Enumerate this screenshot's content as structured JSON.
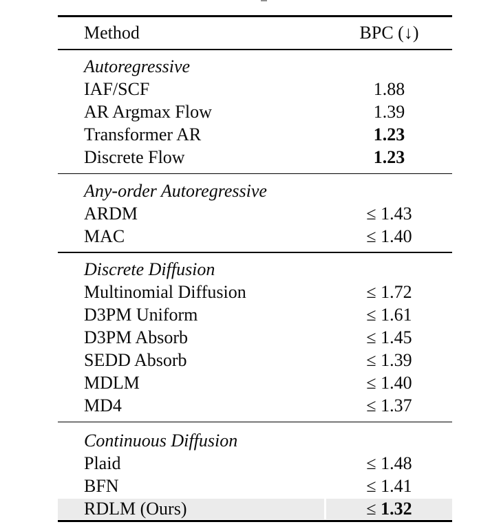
{
  "page": {
    "background": "#ffffff",
    "highlight_color": "#ebebeb"
  },
  "table": {
    "header": {
      "method_label": "Method",
      "value_label": "BPC (↓)"
    },
    "sections": [
      {
        "title": "Autoregressive",
        "rows": [
          {
            "method": "IAF/SCF",
            "prefix": "",
            "number": "1.88",
            "bold": false
          },
          {
            "method": "AR Argmax Flow",
            "prefix": "",
            "number": "1.39",
            "bold": false
          },
          {
            "method": "Transformer AR",
            "prefix": "",
            "number": "1.23",
            "bold": true
          },
          {
            "method": "Discrete Flow",
            "prefix": "",
            "number": "1.23",
            "bold": true
          }
        ]
      },
      {
        "title": "Any-order Autoregressive",
        "rows": [
          {
            "method": "ARDM",
            "prefix": "≤ ",
            "number": "1.43",
            "bold": false
          },
          {
            "method": "MAC",
            "prefix": "≤ ",
            "number": "1.40",
            "bold": false
          }
        ]
      },
      {
        "title": "Discrete Diffusion",
        "rows": [
          {
            "method": "Multinomial Diffusion",
            "prefix": "≤ ",
            "number": "1.72",
            "bold": false
          },
          {
            "method": "D3PM Uniform",
            "prefix": "≤ ",
            "number": "1.61",
            "bold": false
          },
          {
            "method": "D3PM Absorb",
            "prefix": "≤ ",
            "number": "1.45",
            "bold": false
          },
          {
            "method": "SEDD Absorb",
            "prefix": "≤ ",
            "number": "1.39",
            "bold": false
          },
          {
            "method": "MDLM",
            "prefix": "≤ ",
            "number": "1.40",
            "bold": false
          },
          {
            "method": "MD4",
            "prefix": "≤ ",
            "number": "1.37",
            "bold": false
          }
        ]
      },
      {
        "title": "Continuous Diffusion",
        "rows": [
          {
            "method": "Plaid",
            "prefix": "≤ ",
            "number": "1.48",
            "bold": false
          },
          {
            "method": "BFN",
            "prefix": "≤ ",
            "number": "1.41",
            "bold": false
          },
          {
            "method": "RDLM (Ours)",
            "prefix": "≤ ",
            "number": "1.32",
            "bold": true,
            "highlighted": true
          }
        ]
      }
    ]
  }
}
